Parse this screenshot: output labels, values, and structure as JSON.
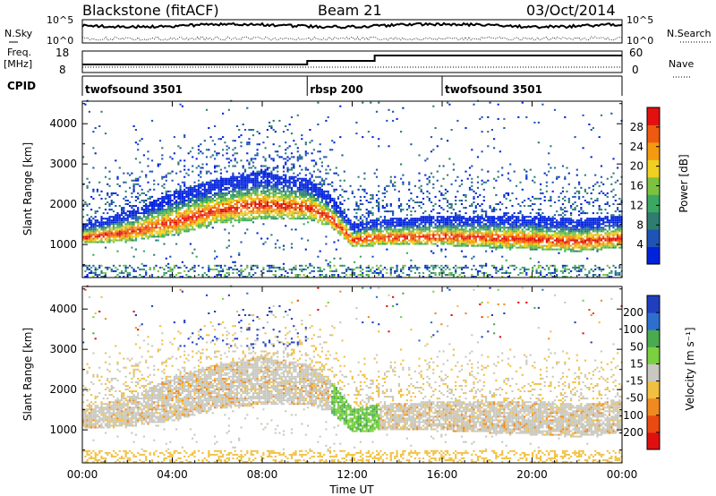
{
  "header": {
    "title": "Blackstone (fitACF)",
    "beam": "Beam 21",
    "date": "03/Oct/2014"
  },
  "noise_panel": {
    "left_label": "N.Sky",
    "right_label": "N.Search",
    "left_ticks": [
      "10^5",
      "10^0"
    ],
    "right_ticks": [
      "10^5",
      "10^0"
    ]
  },
  "freq_panel": {
    "left_label_line1": "Freq.",
    "left_label_line2": "[MHz]",
    "right_label": "Nave",
    "left_ticks": [
      "18",
      "8"
    ],
    "right_ticks": [
      "60",
      "0"
    ]
  },
  "cpid": {
    "label": "CPID",
    "segments": [
      {
        "name": "twofsound 3501",
        "start_hour": 0
      },
      {
        "name": "rbsp 200",
        "start_hour": 10
      },
      {
        "name": "twofsound 3501",
        "start_hour": 16
      }
    ]
  },
  "x_axis": {
    "label": "Time UT",
    "tick_labels": [
      "00:00",
      "04:00",
      "08:00",
      "12:00",
      "16:00",
      "20:00",
      "00:00"
    ]
  },
  "power_panel": {
    "ylabel": "Slant Range [km]",
    "yticks": [
      "1000",
      "2000",
      "3000",
      "4000"
    ],
    "colorbar_label": "Power [dB]",
    "colorbar_ticks": [
      "4",
      "8",
      "12",
      "16",
      "20",
      "24",
      "28"
    ],
    "colors": [
      "#0022dd",
      "#1f53b5",
      "#2e7d6f",
      "#3aa860",
      "#7cc240",
      "#f0d020",
      "#f59a10",
      "#ee5a10",
      "#e31010"
    ]
  },
  "velocity_panel": {
    "ylabel": "Slant Range [km]",
    "yticks": [
      "1000",
      "2000",
      "3000",
      "4000"
    ],
    "colorbar_label": "Velocity [m s⁻¹]",
    "colorbar_ticks": [
      "200",
      "100",
      "50",
      "15",
      "-15",
      "-50",
      "-100",
      "-200"
    ],
    "colors": [
      "#1f3fbf",
      "#2d6fd0",
      "#4aaa50",
      "#7ad040",
      "#c8c8c0",
      "#f0c040",
      "#f08a20",
      "#ea4a10",
      "#e01010"
    ]
  },
  "chart_data": {
    "type": "heatmap",
    "x_range_hours": [
      0,
      24
    ],
    "y_range_km": [
      180,
      4560
    ],
    "echo_band_power_km": [
      {
        "t": 0,
        "lower": 1000,
        "upper": 1500
      },
      {
        "t": 2,
        "lower": 1050,
        "upper": 1800
      },
      {
        "t": 4,
        "lower": 1200,
        "upper": 2300
      },
      {
        "t": 6,
        "lower": 1500,
        "upper": 2600
      },
      {
        "t": 8,
        "lower": 1600,
        "upper": 2800
      },
      {
        "t": 10,
        "lower": 1600,
        "upper": 2600
      },
      {
        "t": 11,
        "lower": 1400,
        "upper": 2200
      },
      {
        "t": 12,
        "lower": 900,
        "upper": 1500
      },
      {
        "t": 13,
        "lower": 950,
        "upper": 1600
      },
      {
        "t": 16,
        "lower": 950,
        "upper": 1700
      },
      {
        "t": 18,
        "lower": 900,
        "upper": 1700
      },
      {
        "t": 20,
        "lower": 850,
        "upper": 1700
      },
      {
        "t": 22,
        "lower": 800,
        "upper": 1600
      },
      {
        "t": 24,
        "lower": 900,
        "upper": 1700
      }
    ],
    "ground_scatter_range_km": [
      180,
      450
    ]
  }
}
